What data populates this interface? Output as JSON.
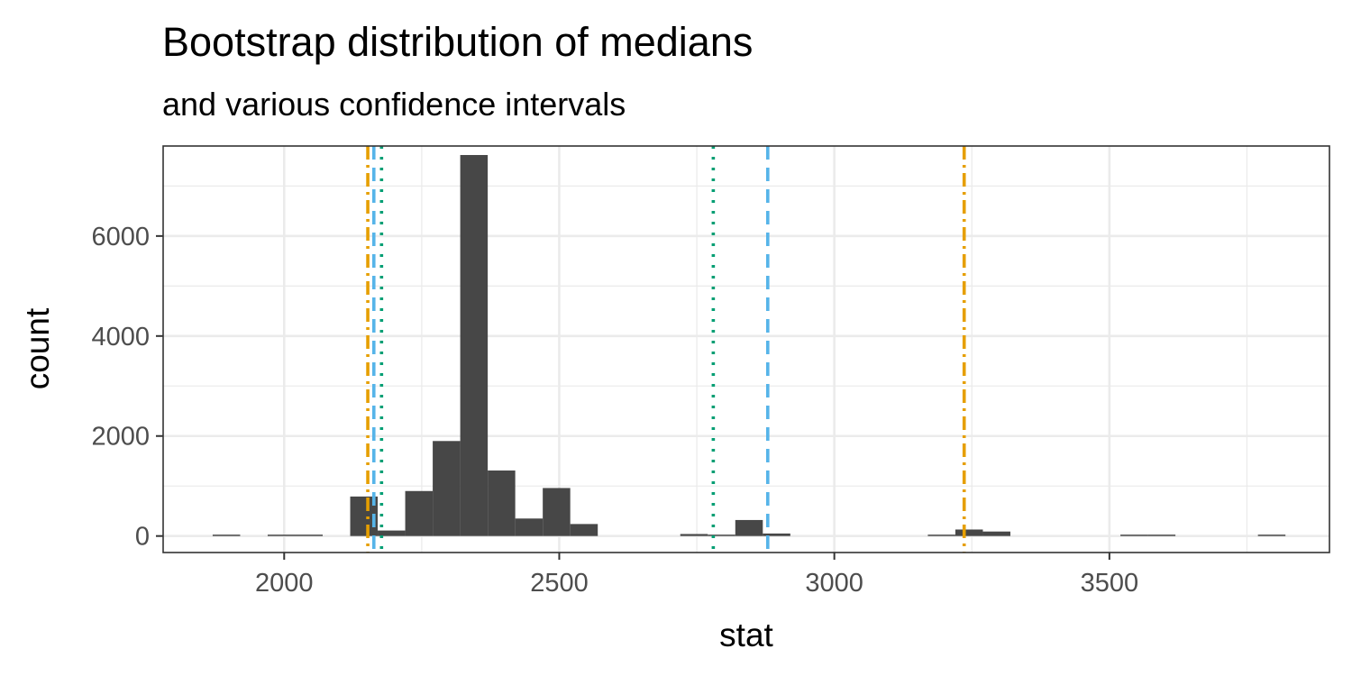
{
  "chart_data": {
    "type": "bar",
    "title": "Bootstrap distribution of medians",
    "subtitle": "and various confidence intervals",
    "xlabel": "stat",
    "ylabel": "count",
    "xlim": [
      1780,
      3900
    ],
    "ylim": [
      -330,
      7800
    ],
    "x_ticks": [
      2000,
      2500,
      3000,
      3500
    ],
    "x_tick_labels": [
      "2000",
      "2500",
      "3000",
      "3500"
    ],
    "y_ticks": [
      0,
      2000,
      4000,
      6000
    ],
    "y_tick_labels": [
      "0",
      "2000",
      "4000",
      "6000"
    ],
    "grid": true,
    "bin_width": 50,
    "bins": [
      {
        "start": 1870,
        "end": 1920,
        "count": 2
      },
      {
        "start": 1970,
        "end": 2020,
        "count": 8
      },
      {
        "start": 2020,
        "end": 2070,
        "count": 12
      },
      {
        "start": 2120,
        "end": 2170,
        "count": 790
      },
      {
        "start": 2170,
        "end": 2220,
        "count": 110
      },
      {
        "start": 2220,
        "end": 2270,
        "count": 900
      },
      {
        "start": 2270,
        "end": 2320,
        "count": 1900
      },
      {
        "start": 2320,
        "end": 2370,
        "count": 7620
      },
      {
        "start": 2370,
        "end": 2420,
        "count": 1310
      },
      {
        "start": 2420,
        "end": 2470,
        "count": 350
      },
      {
        "start": 2470,
        "end": 2520,
        "count": 960
      },
      {
        "start": 2520,
        "end": 2570,
        "count": 240
      },
      {
        "start": 2720,
        "end": 2770,
        "count": 40
      },
      {
        "start": 2770,
        "end": 2820,
        "count": 20
      },
      {
        "start": 2820,
        "end": 2870,
        "count": 320
      },
      {
        "start": 2870,
        "end": 2920,
        "count": 50
      },
      {
        "start": 3170,
        "end": 3220,
        "count": 15
      },
      {
        "start": 3220,
        "end": 3270,
        "count": 130
      },
      {
        "start": 3270,
        "end": 3320,
        "count": 90
      },
      {
        "start": 3520,
        "end": 3570,
        "count": 3
      },
      {
        "start": 3570,
        "end": 3620,
        "count": 3
      },
      {
        "start": 3770,
        "end": 3820,
        "count": 2
      }
    ],
    "bar_color": "#474747",
    "intervals": [
      {
        "lower": 2152,
        "upper": 3236,
        "color": "#E69F00",
        "dash": "dashdot"
      },
      {
        "lower": 2163,
        "upper": 2879,
        "color": "#56B4E9",
        "dash": "dashed"
      },
      {
        "lower": 2177,
        "upper": 2780,
        "color": "#009E73",
        "dash": "dotted"
      }
    ]
  }
}
